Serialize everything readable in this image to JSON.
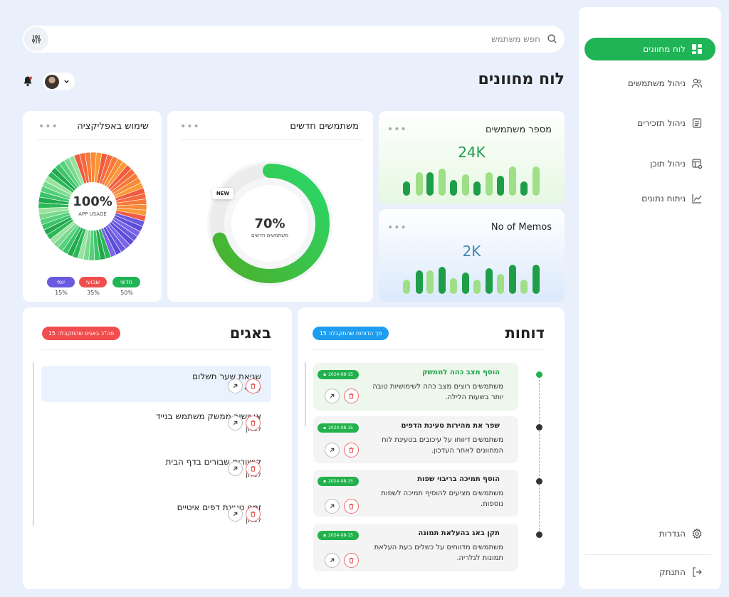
{
  "search": {
    "placeholder": "חפש משתמש"
  },
  "header": {
    "title": "לוח מחוונים"
  },
  "sidebar": {
    "items": [
      {
        "label": "לוח מחוונים",
        "icon": "dashboard-icon",
        "active": true
      },
      {
        "label": "ניהול משתמשים",
        "icon": "users-icon"
      },
      {
        "label": "ניהול תזכירים",
        "icon": "memo-icon"
      },
      {
        "label": "ניהול תוכן",
        "icon": "content-icon"
      },
      {
        "label": "ניתוח נתונים",
        "icon": "analytics-icon"
      }
    ],
    "settings": "הגדרות",
    "logout": "התנתק"
  },
  "cards": {
    "users": {
      "title": "מספר משתמשים",
      "value": "24K"
    },
    "memos": {
      "title": "No of Memos",
      "value": "2K"
    },
    "new_users": {
      "title": "משתמשים חדשים",
      "percent": "70%",
      "caption": "משתמשים חדשים",
      "new_tag": "NEW",
      "progress": 0.7
    },
    "app_usage": {
      "title": "שימוש באפליקציה",
      "percent": "100%",
      "caption": "APP USAGE",
      "legend": [
        {
          "label": "חדשי",
          "pct": "50%",
          "color": "#1fb455"
        },
        {
          "label": "שבועי",
          "pct": "35%",
          "color": "#f04e4e"
        },
        {
          "label": "יומי",
          "pct": "15%",
          "color": "#6a5ae0"
        }
      ]
    }
  },
  "bugs": {
    "title": "באגים",
    "badge": "סה\"כ באגים שהתקבלו: 15",
    "items": [
      {
        "title": "שגיאת שער תשלום",
        "severity": "קריטי"
      },
      {
        "title": "אי יישור ממשק משתמש בנייד",
        "severity": "למתן"
      },
      {
        "title": "קישורים שבורים בדף הבית",
        "severity": "למתן"
      },
      {
        "title": "זמני טעינת דפים איטיים",
        "severity": "למתן"
      }
    ]
  },
  "reports": {
    "title": "דוחות",
    "badge": "סך הדוחות שהתקבלו: 15",
    "items": [
      {
        "title": "הוסף מצב כהה לממשק",
        "body": "משתמשים רוצים מצב כהה לשימושיות טובה יותר בשעות הלילה.",
        "date": "2024-08-15"
      },
      {
        "title": "שפר את מהירות טעינת הדפים",
        "body": "משתמשים דיווחו על עיכובים בטעינת לוח המחוונים לאחר העדכון.",
        "date": "2024-08-15"
      },
      {
        "title": "הוסף תמיכה בריבוי שפות",
        "body": "משתמשים מציעים להוסיף תמיכה לשפות נוספות.",
        "date": "2024-08-15"
      },
      {
        "title": "תקן באג בהעלאת תמונה",
        "body": "משתמשים מדווחים על כשלים בעת העלאת תמונות לגלריה.",
        "date": "2024-08-15"
      }
    ]
  },
  "colors": {
    "accent": "#1fb455",
    "danger": "#f04e4e",
    "info": "#1e9df0",
    "purple": "#6a5ae0"
  }
}
